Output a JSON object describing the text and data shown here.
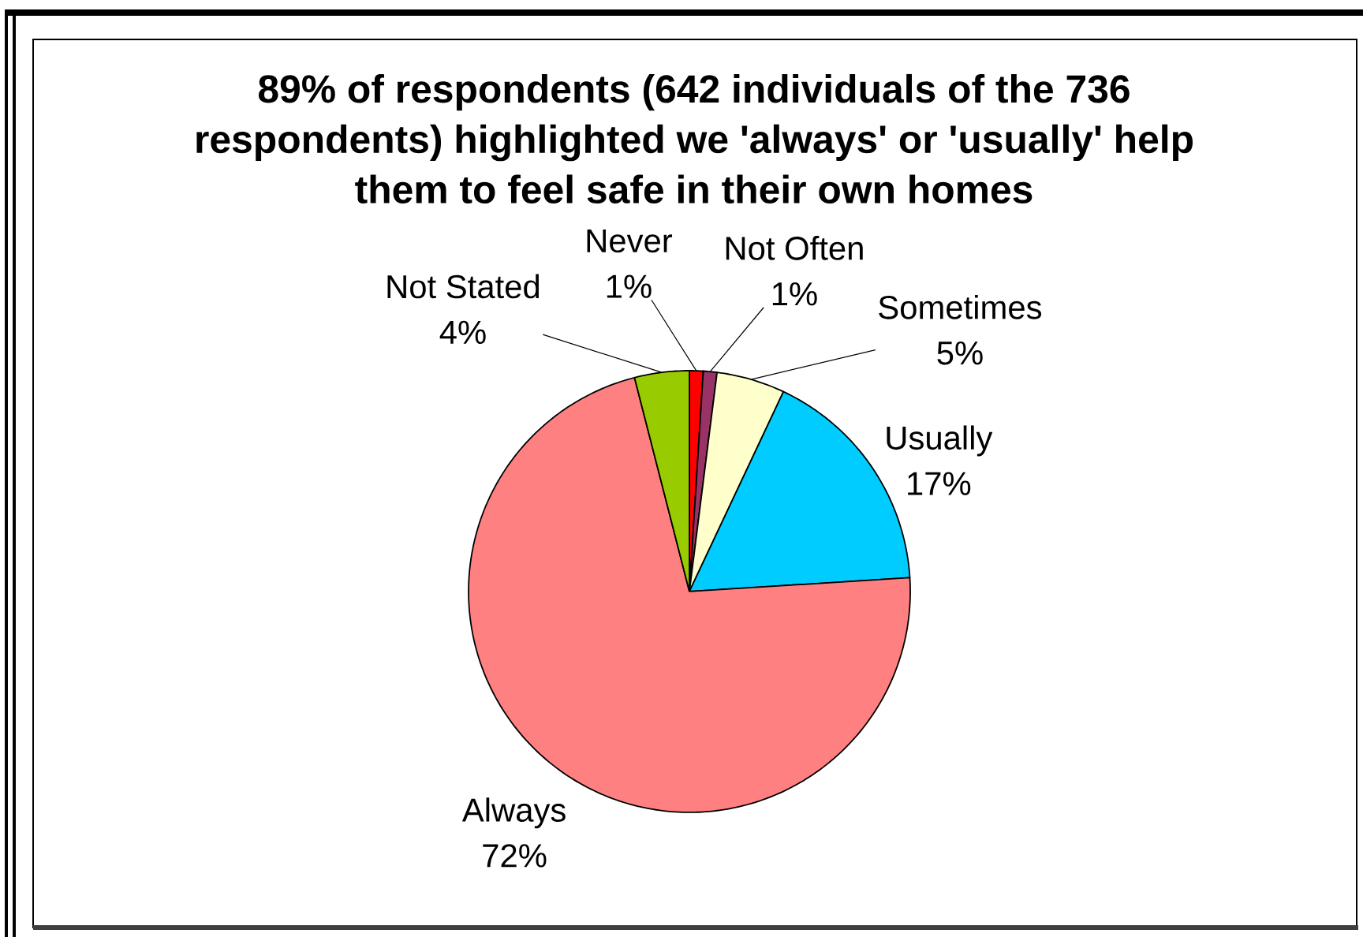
{
  "chart_data": {
    "type": "pie",
    "title": "89% of respondents (642 individuals of the 736 respondents) highlighted we 'always' or 'usually' help them to feel safe in their own homes",
    "categories": [
      "Never",
      "Not Often",
      "Sometimes",
      "Usually",
      "Always",
      "Not Stated"
    ],
    "values": [
      1,
      1,
      5,
      17,
      72,
      4
    ],
    "colors": [
      "#ff0000",
      "#993366",
      "#ffffcc",
      "#00ccff",
      "#ff8080",
      "#99cc00"
    ],
    "value_labels": [
      "1%",
      "1%",
      "5%",
      "17%",
      "72%",
      "4%"
    ]
  }
}
